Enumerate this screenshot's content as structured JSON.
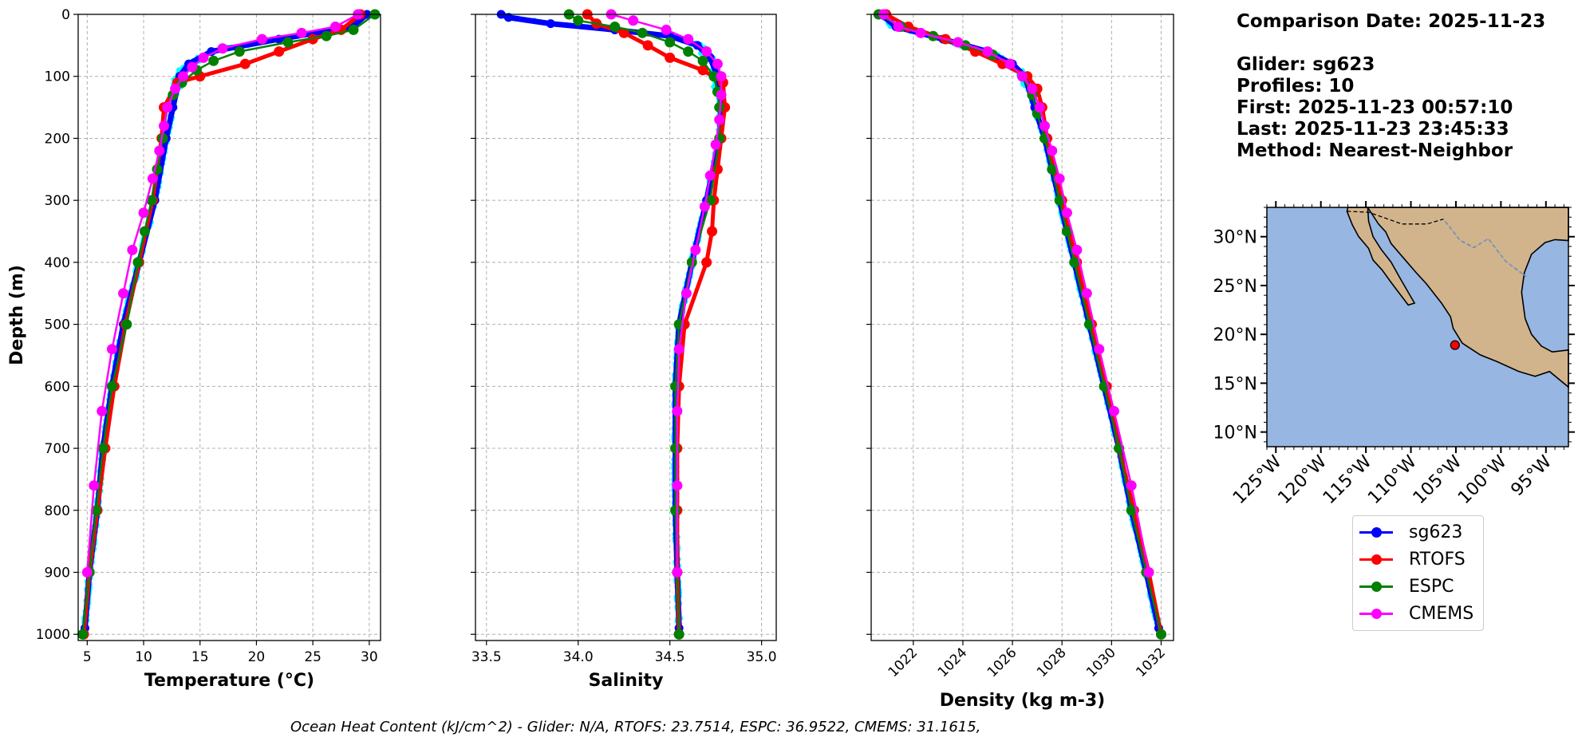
{
  "info": {
    "comparison_date": "Comparison Date: 2025-11-23",
    "glider": "Glider: sg623",
    "profiles": "Profiles: 10",
    "first": "First: 2025-11-23 00:57:10",
    "last": "Last: 2025-11-23 23:45:33",
    "method": "Method: Nearest-Neighbor"
  },
  "footer": "Ocean Heat Content (kJ/cm^2) - Glider: N/A,  RTOFS: 23.7514,  ESPC: 36.9522,  CMEMS: 31.1615,",
  "colors": {
    "sg623": "#0000ff",
    "glider_raw": "#00ffff",
    "RTOFS": "#ff0000",
    "ESPC": "#008000",
    "CMEMS": "#ff00ff",
    "ocean": "#97b6e1",
    "land": "#d2b48c"
  },
  "legend": [
    {
      "name": "sg623",
      "color": "#0000ff"
    },
    {
      "name": "RTOFS",
      "color": "#ff0000"
    },
    {
      "name": "ESPC",
      "color": "#008000"
    },
    {
      "name": "CMEMS",
      "color": "#ff00ff"
    }
  ],
  "chart_data": [
    {
      "type": "line",
      "xlabel": "Temperature (°C)",
      "ylabel": "Depth (m)",
      "xlim": [
        4.2,
        31
      ],
      "ylim": [
        1010,
        0
      ],
      "xticks": [
        5,
        10,
        15,
        20,
        25,
        30
      ],
      "yticks": [
        0,
        100,
        200,
        300,
        400,
        500,
        600,
        700,
        800,
        900,
        1000
      ],
      "grid": true,
      "series": [
        {
          "name": "sg623",
          "color": "#0000ff",
          "depth": [
            0,
            20,
            40,
            60,
            80,
            100,
            150,
            200,
            300,
            400,
            500,
            600,
            700,
            800,
            900,
            990
          ],
          "values": [
            29.8,
            28.5,
            22,
            16,
            14,
            13.2,
            12.6,
            12,
            11,
            9.6,
            8.2,
            7.2,
            6.4,
            5.9,
            5.2,
            4.8
          ]
        },
        {
          "name": "RTOFS",
          "color": "#ff0000",
          "depth": [
            0,
            25,
            40,
            60,
            80,
            100,
            110,
            150,
            200,
            300,
            400,
            500,
            600,
            700,
            800,
            900,
            1000
          ],
          "values": [
            29.2,
            27.5,
            25,
            22,
            19,
            15,
            13,
            11.8,
            11.6,
            10.8,
            9.6,
            8.4,
            7.4,
            6.6,
            5.9,
            5.2,
            4.7
          ]
        },
        {
          "name": "ESPC",
          "color": "#008000",
          "depth": [
            0,
            25,
            35,
            45,
            60,
            75,
            90,
            110,
            130,
            150,
            200,
            250,
            300,
            350,
            400,
            500,
            600,
            700,
            800,
            900,
            1000
          ],
          "values": [
            30.5,
            28.6,
            26.2,
            22.8,
            18.5,
            16.2,
            14.7,
            13.4,
            12.6,
            12.1,
            11.7,
            11.2,
            10.7,
            10.1,
            9.5,
            8.5,
            7.2,
            6.4,
            5.8,
            5.2,
            4.6
          ]
        },
        {
          "name": "CMEMS",
          "color": "#ff00ff",
          "depth": [
            0,
            20,
            30,
            40,
            55,
            70,
            85,
            100,
            120,
            150,
            180,
            220,
            265,
            320,
            380,
            450,
            540,
            640,
            760,
            900
          ],
          "values": [
            29.0,
            27.0,
            24.0,
            20.5,
            17.0,
            15.3,
            14.3,
            13.5,
            12.8,
            12.1,
            11.8,
            11.4,
            10.8,
            10.0,
            9.0,
            8.2,
            7.2,
            6.3,
            5.6,
            5.0
          ]
        }
      ]
    },
    {
      "type": "line",
      "xlabel": "Salinity",
      "xlim": [
        33.44,
        35.08
      ],
      "ylim": [
        1010,
        0
      ],
      "xticks": [
        33.5,
        34.0,
        34.5,
        35.0
      ],
      "grid": true,
      "series": [
        {
          "name": "sg623",
          "color": "#0000ff",
          "depth": [
            0,
            5,
            15,
            25,
            35,
            50,
            70,
            100,
            150,
            200,
            300,
            400,
            500,
            600,
            700,
            800,
            900,
            990
          ],
          "values": [
            33.58,
            33.62,
            33.85,
            34.2,
            34.5,
            34.65,
            34.72,
            34.76,
            34.78,
            34.77,
            34.7,
            34.62,
            34.55,
            34.53,
            34.53,
            34.53,
            34.54,
            34.55
          ]
        },
        {
          "name": "RTOFS",
          "color": "#ff0000",
          "depth": [
            0,
            15,
            30,
            50,
            70,
            90,
            110,
            150,
            200,
            250,
            300,
            350,
            400,
            500,
            600,
            700,
            800,
            900,
            1000
          ],
          "values": [
            34.05,
            34.1,
            34.25,
            34.38,
            34.5,
            34.68,
            34.79,
            34.8,
            34.78,
            34.76,
            34.74,
            34.73,
            34.7,
            34.58,
            34.55,
            34.54,
            34.54,
            34.54,
            34.55
          ]
        },
        {
          "name": "ESPC",
          "color": "#008000",
          "depth": [
            0,
            10,
            20,
            30,
            45,
            60,
            75,
            100,
            125,
            150,
            200,
            300,
            400,
            500,
            600,
            700,
            800,
            900,
            1000
          ],
          "values": [
            33.95,
            34.0,
            34.2,
            34.35,
            34.5,
            34.6,
            34.68,
            34.74,
            34.76,
            34.77,
            34.77,
            34.72,
            34.62,
            34.55,
            34.53,
            34.53,
            34.53,
            34.54,
            34.55
          ]
        },
        {
          "name": "CMEMS",
          "color": "#ff00ff",
          "depth": [
            0,
            10,
            25,
            40,
            60,
            80,
            100,
            130,
            170,
            210,
            260,
            310,
            380,
            450,
            540,
            640,
            760,
            900
          ],
          "values": [
            34.18,
            34.3,
            34.48,
            34.6,
            34.7,
            34.76,
            34.78,
            34.78,
            34.77,
            34.75,
            34.72,
            34.69,
            34.64,
            34.59,
            34.55,
            34.54,
            34.54,
            34.54
          ]
        }
      ]
    },
    {
      "type": "line",
      "xlabel": "Density (kg m-3)",
      "xlim": [
        1020.3,
        1032.5
      ],
      "ylim": [
        1010,
        0
      ],
      "xticks": [
        1022,
        1024,
        1026,
        1028,
        1030,
        1032
      ],
      "grid": true,
      "series": [
        {
          "name": "sg623",
          "color": "#0000ff",
          "depth": [
            0,
            20,
            40,
            60,
            80,
            100,
            150,
            200,
            300,
            400,
            500,
            600,
            700,
            800,
            900,
            990
          ],
          "values": [
            1020.7,
            1021.3,
            1023.2,
            1025.0,
            1026.0,
            1026.5,
            1026.9,
            1027.3,
            1027.9,
            1028.5,
            1029.1,
            1029.7,
            1030.3,
            1030.8,
            1031.4,
            1031.9
          ]
        },
        {
          "name": "RTOFS",
          "color": "#ff0000",
          "depth": [
            0,
            20,
            40,
            60,
            80,
            100,
            120,
            150,
            200,
            300,
            400,
            500,
            600,
            700,
            800,
            900,
            1000
          ],
          "values": [
            1020.9,
            1021.8,
            1023.3,
            1024.5,
            1025.6,
            1026.6,
            1027.0,
            1027.2,
            1027.4,
            1028.0,
            1028.6,
            1029.2,
            1029.8,
            1030.3,
            1030.9,
            1031.5,
            1032.0
          ]
        },
        {
          "name": "ESPC",
          "color": "#008000",
          "depth": [
            0,
            20,
            35,
            50,
            65,
            80,
            100,
            130,
            160,
            200,
            250,
            300,
            350,
            400,
            500,
            600,
            700,
            800,
            900,
            1000
          ],
          "values": [
            1020.6,
            1021.5,
            1022.8,
            1024.1,
            1025.2,
            1025.9,
            1026.4,
            1026.8,
            1027.0,
            1027.3,
            1027.6,
            1027.9,
            1028.2,
            1028.5,
            1029.1,
            1029.7,
            1030.3,
            1030.8,
            1031.4,
            1032.0
          ]
        },
        {
          "name": "CMEMS",
          "color": "#ff00ff",
          "depth": [
            0,
            20,
            30,
            45,
            60,
            80,
            100,
            120,
            150,
            180,
            220,
            265,
            320,
            380,
            450,
            540,
            640,
            760,
            900
          ],
          "values": [
            1020.8,
            1021.4,
            1022.3,
            1023.8,
            1025.0,
            1025.9,
            1026.4,
            1026.8,
            1027.1,
            1027.3,
            1027.6,
            1027.9,
            1028.2,
            1028.6,
            1029.0,
            1029.5,
            1030.1,
            1030.8,
            1031.5
          ]
        }
      ]
    },
    {
      "type": "map",
      "lat_range": [
        8.5,
        33
      ],
      "lon_range": [
        -126,
        -92.5
      ],
      "lat_ticks": [
        "30°N",
        "25°N",
        "20°N",
        "15°N",
        "10°N"
      ],
      "lon_ticks": [
        "125°W",
        "120°W",
        "115°W",
        "110°W",
        "105°W",
        "100°W",
        "95°W"
      ],
      "glider_position": {
        "lat": 18.9,
        "lon": -105.1
      }
    }
  ]
}
